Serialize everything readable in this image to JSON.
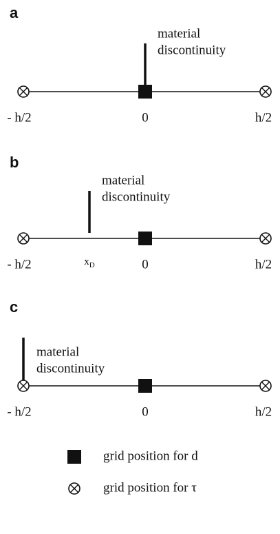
{
  "panels": [
    {
      "label": "a",
      "annotation": [
        "material",
        "discontinuity"
      ],
      "left": "- h/2",
      "center": "0",
      "right": "h/2"
    },
    {
      "label": "b",
      "annotation": [
        "material",
        "discontinuity"
      ],
      "left": "- h/2",
      "center": "0",
      "right": "h/2",
      "discontinuity": {
        "label": "x",
        "subscript": "D"
      }
    },
    {
      "label": "c",
      "annotation": [
        "material",
        "discontinuity"
      ],
      "left": "- h/2",
      "center": "0",
      "right": "h/2"
    }
  ],
  "legend": [
    {
      "symbol": "square",
      "text": "grid position for d"
    },
    {
      "symbol": "otimes",
      "text": "grid position for τ"
    }
  ]
}
